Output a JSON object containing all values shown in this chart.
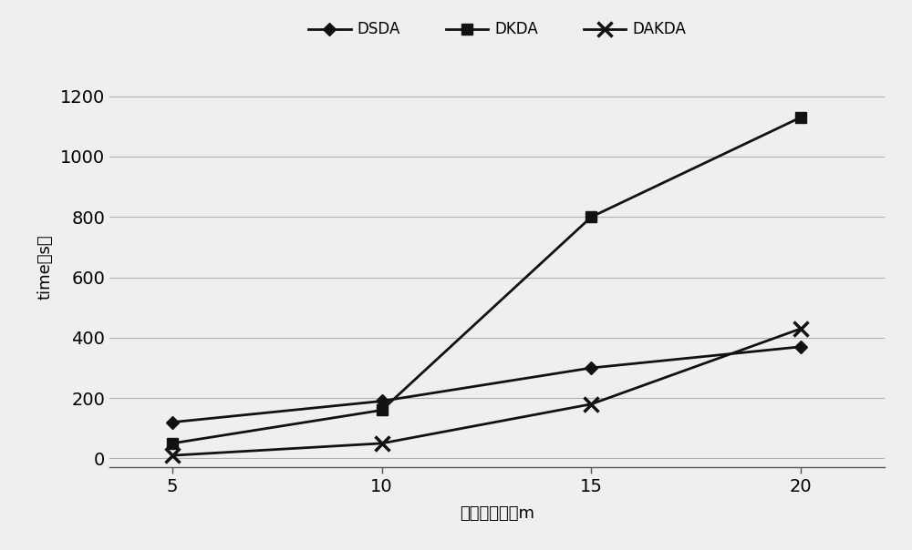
{
  "x": [
    5,
    10,
    15,
    20
  ],
  "DSDA": [
    120,
    190,
    300,
    370
  ],
  "DKDA": [
    50,
    160,
    800,
    1130
  ],
  "DAKDA": [
    10,
    50,
    180,
    430
  ],
  "xlabel": "输入集合大小m",
  "ylabel": "time（s）",
  "yticks": [
    0,
    200,
    400,
    600,
    800,
    1000,
    1200
  ],
  "xticks": [
    5,
    10,
    15,
    20
  ],
  "ylim": [
    -30,
    1300
  ],
  "xlim": [
    3.5,
    22
  ],
  "legend_labels": [
    "DSDA",
    "DKDA",
    "DAKDA"
  ],
  "line_color": "#111111",
  "bg_color": "#f0eeee",
  "plot_bg_color": "#f0eeee",
  "grid_color": "#b0b0b0",
  "legend_fontsize": 12,
  "axis_fontsize": 13,
  "tick_fontsize": 14
}
